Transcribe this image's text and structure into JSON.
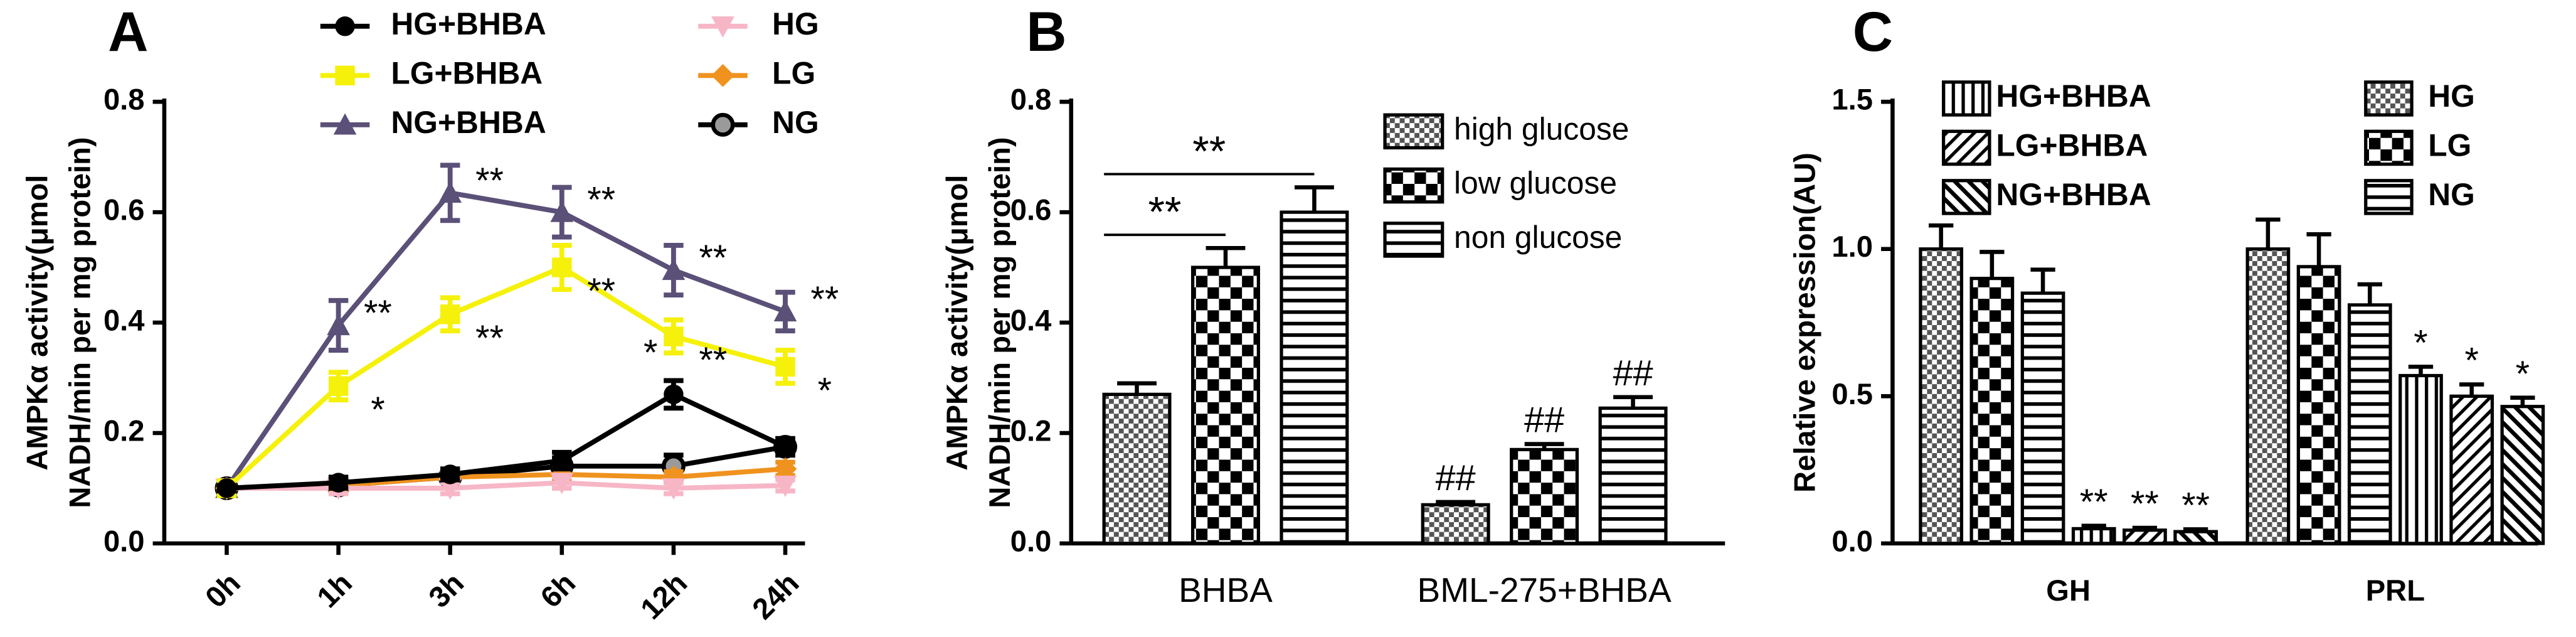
{
  "chart_data": [
    {
      "type": "line",
      "panel_label": "A",
      "y_label": [
        "AMPKα  activity(μmol",
        "NADH/min per mg protein)"
      ],
      "categories": [
        "0h",
        "1h",
        "3h",
        "6h",
        "12h",
        "24h"
      ],
      "ylim": [
        0,
        0.8
      ],
      "yticks": [
        {
          "value": 0,
          "label": "0.0"
        },
        0.2,
        0.4,
        0.6,
        0.8
      ],
      "series": [
        {
          "name": "HG+BHBA",
          "color": "#000000",
          "marker": "circle",
          "values": [
            0.1,
            0.11,
            0.125,
            0.15,
            0.27,
            0.175
          ],
          "errors": [
            0.005,
            0.01,
            0.01,
            0.015,
            0.025,
            0.015
          ],
          "annotations": [
            null,
            null,
            null,
            null,
            "*",
            null
          ]
        },
        {
          "name": "LG+BHBA",
          "color": "#f5f10a",
          "marker": "square",
          "values": [
            0.1,
            0.285,
            0.415,
            0.5,
            0.375,
            0.32
          ],
          "errors": [
            0.005,
            0.025,
            0.03,
            0.04,
            0.03,
            0.03
          ],
          "annotations": [
            null,
            "*",
            "**",
            "**",
            "**",
            "*"
          ]
        },
        {
          "name": "NG+BHBA",
          "color": "#5b5078",
          "marker": "triangle",
          "values": [
            0.1,
            0.395,
            0.635,
            0.6,
            0.495,
            0.42
          ],
          "errors": [
            0.005,
            0.045,
            0.05,
            0.045,
            0.045,
            0.035
          ],
          "annotations": [
            null,
            "**",
            "**",
            "**",
            "**",
            "**"
          ]
        },
        {
          "name": "HG",
          "color": "#f7b6c6",
          "marker": "triangle-down",
          "values": [
            0.1,
            0.1,
            0.1,
            0.11,
            0.1,
            0.105
          ],
          "errors": [
            0.005,
            0.01,
            0.01,
            0.01,
            0.01,
            0.01
          ],
          "annotations": [
            null,
            null,
            null,
            null,
            null,
            null
          ]
        },
        {
          "name": "LG",
          "color": "#f0921e",
          "marker": "diamond",
          "values": [
            0.1,
            0.105,
            0.12,
            0.125,
            0.12,
            0.135
          ],
          "errors": [
            0.005,
            0.008,
            0.008,
            0.01,
            0.01,
            0.012
          ],
          "annotations": [
            null,
            null,
            null,
            null,
            null,
            null
          ]
        },
        {
          "name": "NG",
          "color": "#000000",
          "marker": "circle-open",
          "values": [
            0.1,
            0.105,
            0.12,
            0.14,
            0.14,
            0.175
          ],
          "errors": [
            0.005,
            0.01,
            0.01,
            0.015,
            0.02,
            0.015
          ],
          "annotations": [
            null,
            null,
            null,
            null,
            null,
            null
          ]
        }
      ]
    },
    {
      "type": "bar",
      "panel_label": "B",
      "y_label": [
        "AMPKα  activity(μmol",
        "NADH/min per mg protein)"
      ],
      "categories": [
        "BHBA",
        "BML-275+BHBA"
      ],
      "ylim": [
        0,
        0.8
      ],
      "yticks": [
        {
          "value": 0,
          "label": "0.0"
        },
        0.2,
        0.4,
        0.6,
        0.8
      ],
      "series": [
        {
          "name": "high glucose",
          "pattern": "fine-check",
          "values": [
            0.27,
            0.07
          ],
          "errors": [
            0.02,
            0.005
          ],
          "annotations": [
            null,
            "##"
          ]
        },
        {
          "name": "low glucose",
          "pattern": "big-check",
          "values": [
            0.5,
            0.17
          ],
          "errors": [
            0.035,
            0.01
          ],
          "annotations": [
            null,
            "##"
          ]
        },
        {
          "name": "non glucose",
          "pattern": "h-stripes",
          "values": [
            0.6,
            0.245
          ],
          "errors": [
            0.045,
            0.02
          ],
          "annotations": [
            null,
            "##"
          ]
        }
      ],
      "brackets": [
        {
          "label": "**",
          "category": 0,
          "from": 0,
          "to": 1
        },
        {
          "label": "**",
          "category": 0,
          "from": 0,
          "to": 2
        }
      ]
    },
    {
      "type": "bar",
      "panel_label": "C",
      "y_label": [
        "Relative expression(AU)"
      ],
      "categories": [
        "GH",
        "PRL"
      ],
      "ylim": [
        0,
        1.5
      ],
      "yticks": [
        {
          "value": 0,
          "label": "0.0"
        },
        0.5,
        {
          "value": 1,
          "label": "1.0"
        },
        1.5
      ],
      "series": [
        {
          "name": "HG",
          "pattern": "fine-check",
          "values": [
            1.0,
            1.0
          ],
          "errors": [
            0.08,
            0.1
          ],
          "annotations": [
            null,
            null
          ]
        },
        {
          "name": "LG",
          "pattern": "big-check",
          "values": [
            0.9,
            0.94
          ],
          "errors": [
            0.09,
            0.11
          ],
          "annotations": [
            null,
            null
          ]
        },
        {
          "name": "NG",
          "pattern": "h-stripes",
          "values": [
            0.85,
            0.81
          ],
          "errors": [
            0.08,
            0.07
          ],
          "annotations": [
            null,
            null
          ]
        },
        {
          "name": "HG+BHBA",
          "pattern": "v-stripes",
          "values": [
            0.05,
            0.57
          ],
          "errors": [
            0.01,
            0.03
          ],
          "annotations": [
            "**",
            "*"
          ]
        },
        {
          "name": "LG+BHBA",
          "pattern": "diag-up",
          "values": [
            0.045,
            0.5
          ],
          "errors": [
            0.008,
            0.04
          ],
          "annotations": [
            "**",
            "*"
          ]
        },
        {
          "name": "NG+BHBA",
          "pattern": "diag-down",
          "values": [
            0.04,
            0.465
          ],
          "errors": [
            0.008,
            0.03
          ],
          "annotations": [
            "**",
            "*"
          ]
        }
      ]
    }
  ]
}
